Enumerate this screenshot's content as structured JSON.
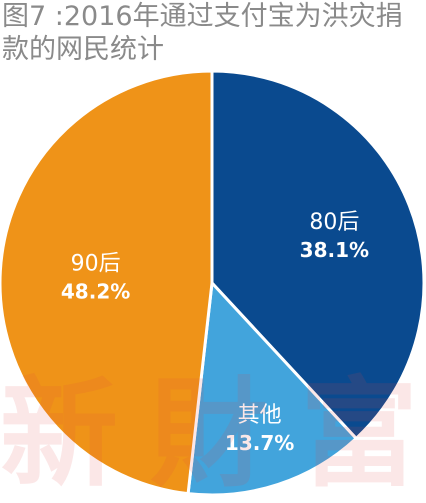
{
  "title": "图7 :2016年通过支付宝为洪灾捐款的网民统计",
  "watermark": "新財富",
  "chart_data": {
    "type": "pie",
    "title": "图7 :2016年通过支付宝为洪灾捐款的网民统计",
    "start_angle_deg": 0,
    "direction": "clockwise",
    "slices": [
      {
        "label": "80后",
        "value": 38.1,
        "value_label": "38.1%",
        "color": "#0a4a8f"
      },
      {
        "label": "其他",
        "value": 13.7,
        "value_label": "13.7%",
        "color": "#42a4dc"
      },
      {
        "label": "90后",
        "value": 48.2,
        "value_label": "48.2%",
        "color": "#ef9318"
      }
    ]
  }
}
